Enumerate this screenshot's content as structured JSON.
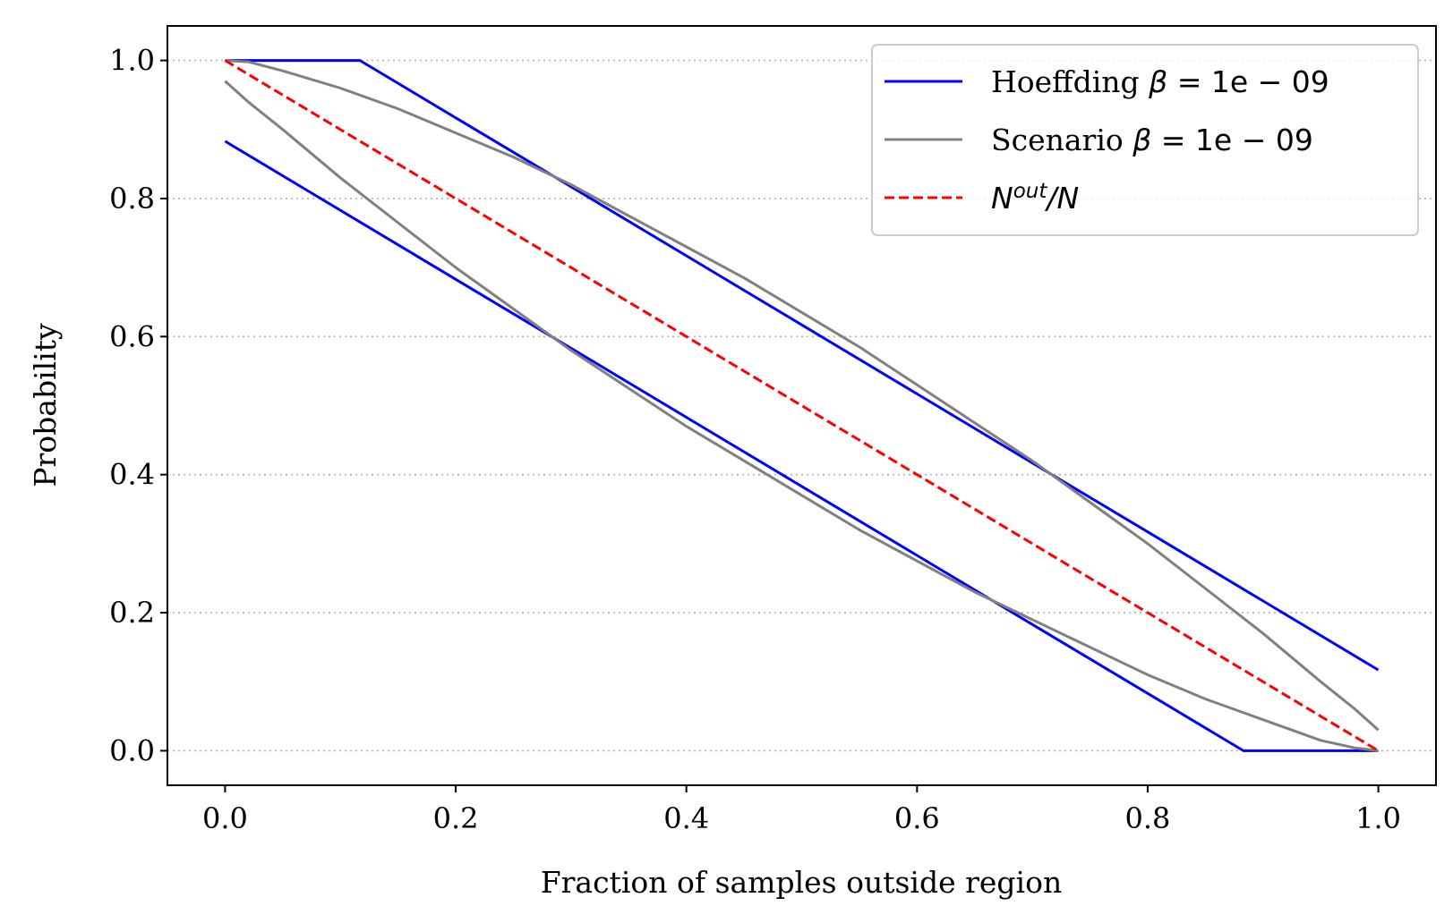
{
  "chart_data": {
    "type": "line",
    "xlabel": "Fraction of samples outside region",
    "ylabel": "Probability",
    "xlim": [
      -0.05,
      1.05
    ],
    "ylim": [
      -0.05,
      1.05
    ],
    "xticks": [
      0.0,
      0.2,
      0.4,
      0.6,
      0.8,
      1.0
    ],
    "xtick_labels": [
      "0.0",
      "0.2",
      "0.4",
      "0.6",
      "0.8",
      "1.0"
    ],
    "yticks": [
      0.0,
      0.2,
      0.4,
      0.6,
      0.8,
      1.0
    ],
    "ytick_labels": [
      "0.0",
      "0.2",
      "0.4",
      "0.6",
      "0.8",
      "1.0"
    ],
    "grid": "horizontal dotted",
    "legend_position": "top-right",
    "legend": {
      "hoeffding": {
        "text": "Hoeffding ",
        "beta": "β",
        "rest": " = 1e − 09"
      },
      "scenario": {
        "text": "Scenario ",
        "beta": "β",
        "rest": " = 1e − 09"
      },
      "ratio": {
        "n": "N",
        "sup": "out",
        "tail": "/N"
      }
    },
    "series": [
      {
        "name": "Hoeffding β = 1e − 09",
        "color": "#0000ff",
        "dash": "solid",
        "x": [
          0.0,
          0.117,
          0.2,
          0.3,
          0.4,
          0.5,
          0.6,
          0.7,
          0.8,
          0.9,
          1.0
        ],
        "y": [
          1.0,
          1.0,
          0.917,
          0.817,
          0.717,
          0.617,
          0.517,
          0.417,
          0.317,
          0.217,
          0.117
        ]
      },
      {
        "name": "Hoeffding β = 1e − 09",
        "color": "#0000ff",
        "dash": "solid",
        "x": [
          0.0,
          0.1,
          0.2,
          0.3,
          0.4,
          0.5,
          0.6,
          0.7,
          0.8,
          0.883,
          1.0
        ],
        "y": [
          0.883,
          0.783,
          0.683,
          0.583,
          0.483,
          0.383,
          0.283,
          0.183,
          0.083,
          0.0,
          0.0
        ]
      },
      {
        "name": "Scenario β = 1e − 09",
        "color": "#808080",
        "dash": "solid",
        "x": [
          0.0,
          0.02,
          0.05,
          0.1,
          0.15,
          0.2,
          0.25,
          0.3,
          0.35,
          0.4,
          0.45,
          0.5,
          0.55,
          0.6,
          0.65,
          0.7,
          0.75,
          0.8,
          0.85,
          0.9,
          0.95,
          0.98,
          1.0
        ],
        "y": [
          1.0,
          0.998,
          0.985,
          0.96,
          0.93,
          0.895,
          0.86,
          0.82,
          0.775,
          0.73,
          0.685,
          0.635,
          0.585,
          0.53,
          0.475,
          0.42,
          0.36,
          0.3,
          0.235,
          0.17,
          0.1,
          0.06,
          0.03
        ]
      },
      {
        "name": "Scenario β = 1e − 09",
        "color": "#808080",
        "dash": "solid",
        "x": [
          0.0,
          0.02,
          0.05,
          0.1,
          0.15,
          0.2,
          0.25,
          0.3,
          0.35,
          0.4,
          0.45,
          0.5,
          0.55,
          0.6,
          0.65,
          0.7,
          0.75,
          0.8,
          0.85,
          0.9,
          0.95,
          0.98,
          1.0
        ],
        "y": [
          0.97,
          0.94,
          0.9,
          0.83,
          0.765,
          0.7,
          0.64,
          0.58,
          0.525,
          0.47,
          0.42,
          0.37,
          0.32,
          0.275,
          0.23,
          0.19,
          0.15,
          0.11,
          0.075,
          0.045,
          0.015,
          0.004,
          0.0
        ]
      },
      {
        "name": "N^out/N",
        "color": "#ff0000",
        "dash": "dashed",
        "x": [
          0.0,
          1.0
        ],
        "y": [
          1.0,
          0.0
        ]
      }
    ]
  }
}
